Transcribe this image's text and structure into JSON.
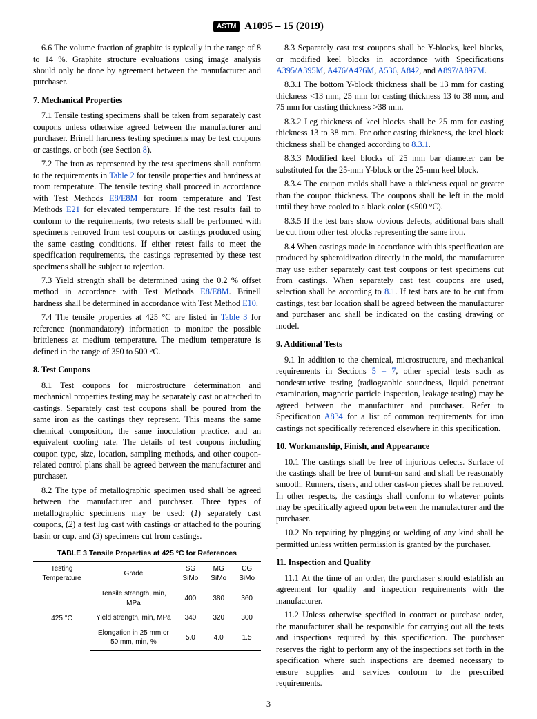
{
  "header": {
    "logo_text": "ASTM",
    "spec": "A1095 – 15 (2019)"
  },
  "left": {
    "p6_6": "6.6 The volume fraction of graphite is typically in the range of 8 to 14 %. Graphite structure evaluations using image analysis should only be done by agreement between the manufacturer and purchaser.",
    "s7": "7. Mechanical Properties",
    "p7_1a": "7.1 Tensile testing specimens shall be taken from separately cast coupons unless otherwise agreed between the manufacturer and purchaser. Brinell hardness testing specimens may be test coupons or castings, or both (see Section ",
    "p7_1b": ").",
    "ref8": "8",
    "p7_2a": "7.2 The iron as represented by the test specimens shall conform to the requirements in ",
    "refT2": "Table 2",
    "p7_2b": " for tensile properties and hardness at room temperature. The tensile testing shall proceed in accordance with Test Methods ",
    "refE8a": "E8/E8M",
    "p7_2c": " for room temperature and Test Methods ",
    "refE21": "E21",
    "p7_2d": " for elevated temperature. If the test results fail to conform to the requirements, two retests shall be performed with specimens removed from test coupons or castings produced using the same casting conditions. If either retest fails to meet the specification requirements, the castings represented by these test specimens shall be subject to rejection.",
    "p7_3a": "7.3 Yield strength shall be determined using the 0.2 % offset method in accordance with Test Methods ",
    "refE8b": "E8/E8M",
    "p7_3b": ". Brinell hardness shall be determined in accordance with Test Method ",
    "refE10": "E10",
    "p7_3c": ".",
    "p7_4a": "7.4 The tensile properties at 425 °C are listed in ",
    "refT3": "Table 3",
    "p7_4b": " for reference (nonmandatory) information to monitor the possible brittleness at medium temperature. The medium temperature is defined in the range of 350 to 500 °C.",
    "s8": "8. Test Coupons",
    "p8_1": "8.1 Test coupons for microstructure determination and mechanical properties testing may be separately cast or attached to castings. Separately cast test coupons shall be poured from the same iron as the castings they represent. This means the same chemical composition, the same inoculation practice, and an equivalent cooling rate. The details of test coupons including coupon type, size, location, sampling methods, and other coupon-related control plans shall be agreed between the manufacturer and purchaser.",
    "p8_2": "8.2 The type of metallographic specimen used shall be agreed between the manufacturer and purchaser. Three types of metallographic specimens may be used: (1) separately cast coupons, (2) a test lug cast with castings or attached to the pouring basin or cup, and (3) specimens cut from castings."
  },
  "table3": {
    "title": "TABLE 3 Tensile Properties at 425 °C for References",
    "h1": "Testing Temperature",
    "h2": "Grade",
    "c1": "SG SiMo",
    "c2": "MG SiMo",
    "c3": "CG SiMo",
    "temp": "425 °C",
    "r1": "Tensile strength, min, MPa",
    "r1v": [
      "400",
      "380",
      "360"
    ],
    "r2": "Yield strength, min, MPa",
    "r2v": [
      "340",
      "320",
      "300"
    ],
    "r3": "Elongation in 25 mm or 50 mm, min, %",
    "r3v": [
      "5.0",
      "4.0",
      "1.5"
    ]
  },
  "right": {
    "p8_3a": "8.3 Separately cast test coupons shall be Y-blocks, keel blocks, or modified keel blocks in accordance with Specifications ",
    "refA395": "A395/A395M",
    "refA476": "A476/A476M",
    "refA536": "A536",
    "refA842": "A842",
    "refA897": "A897/A897M",
    "comma": ", ",
    "and": ", and ",
    "period": ".",
    "p8_3_1": "8.3.1 The bottom Y-block thickness shall be 13 mm for casting thickness <13 mm, 25 mm for casting thickness 13 to 38 mm, and 75 mm for casting thickness >38 mm.",
    "p8_3_2a": "8.3.2 Leg thickness of keel blocks shall be 25 mm for casting thickness 13 to 38 mm. For other casting thickness, the keel block thickness shall be changed according to ",
    "ref831": "8.3.1",
    "p8_3_3": "8.3.3 Modified keel blocks of 25 mm bar diameter can be substituted for the 25-mm Y-block or the 25-mm keel block.",
    "p8_3_4": "8.3.4 The coupon molds shall have a thickness equal or greater than the coupon thickness. The coupons shall be left in the mold until they have cooled to a black color (≤500 °C).",
    "p8_3_5": "8.3.5 If the test bars show obvious defects, additional bars shall be cut from other test blocks representing the same iron.",
    "p8_4a": "8.4 When castings made in accordance with this specification are produced by spheroidization directly in the mold, the manufacturer may use either separately cast test coupons or test specimens cut from castings. When separately cast test coupons are used, selection shall be according to ",
    "ref81": "8.1",
    "p8_4b": ". If test bars are to be cut from castings, test bar location shall be agreed between the manufacturer and purchaser and shall be indicated on the casting drawing or model.",
    "s9": "9. Additional Tests",
    "p9_1a": "9.1 In addition to the chemical, microstructure, and mechanical requirements in Sections ",
    "ref5_7": "5 – 7",
    "p9_1b": ", other special tests such as nondestructive testing (radiographic soundness, liquid penetrant examination, magnetic particle inspection, leakage testing) may be agreed between the manufacturer and purchaser. Refer to Specification ",
    "refA834": "A834",
    "p9_1c": " for a list of common requirements for iron castings not specifically referenced elsewhere in this specification.",
    "s10": "10. Workmanship, Finish, and Appearance",
    "p10_1": "10.1 The castings shall be free of injurious defects. Surface of the castings shall be free of burnt-on sand and shall be reasonably smooth. Runners, risers, and other cast-on pieces shall be removed. In other respects, the castings shall conform to whatever points may be specifically agreed upon between the manufacturer and the purchaser.",
    "p10_2": "10.2 No repairing by plugging or welding of any kind shall be permitted unless written permission is granted by the purchaser.",
    "s11": "11. Inspection and Quality",
    "p11_1": "11.1 At the time of an order, the purchaser should establish an agreement for quality and inspection requirements with the manufacturer.",
    "p11_2": "11.2 Unless otherwise specified in contract or purchase order, the manufacturer shall be responsible for carrying out all the tests and inspections required by this specification. The purchaser reserves the right to perform any of the inspections set forth in the specification where such inspections are deemed necessary to ensure supplies and services conform to the prescribed requirements."
  },
  "pagenum": "3"
}
